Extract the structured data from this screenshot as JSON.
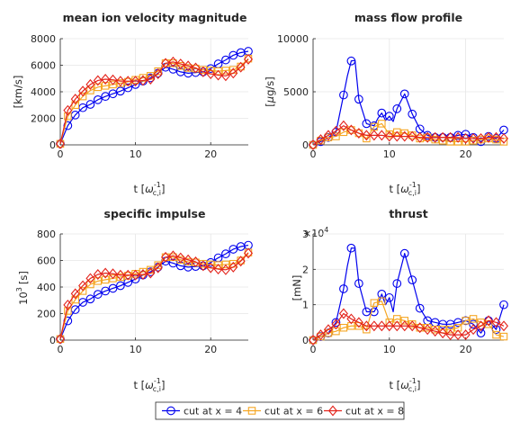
{
  "chart_data": [
    {
      "type": "line",
      "title": "mean ion velocity magnitude",
      "ylabel": "[km/s]",
      "xlabel_main": "t [",
      "xlabel_sym": "ω",
      "xlabel_sup": "-1",
      "xlabel_sub": "c,i",
      "xlabel_close": "]",
      "xlim": [
        0,
        25
      ],
      "ylim": [
        0,
        8000
      ],
      "xticks": [
        0,
        10,
        20
      ],
      "yticks": [
        0,
        2000,
        4000,
        6000,
        8000
      ],
      "series": [
        {
          "name": "cut at x = 4",
          "x": [
            0,
            1,
            2,
            3,
            4,
            5,
            6,
            7,
            8,
            9,
            10,
            11,
            12,
            13,
            14,
            15,
            16,
            17,
            18,
            19,
            20,
            21,
            22,
            23,
            24,
            25
          ],
          "y": [
            80,
            1450,
            2250,
            2800,
            3050,
            3400,
            3650,
            3850,
            4050,
            4300,
            4550,
            4800,
            5050,
            5400,
            5850,
            5700,
            5500,
            5400,
            5450,
            5500,
            5750,
            6100,
            6400,
            6750,
            6950,
            7050
          ]
        },
        {
          "name": "cut at x = 6",
          "x": [
            0,
            1,
            2,
            3,
            4,
            5,
            6,
            7,
            8,
            9,
            10,
            11,
            12,
            13,
            14,
            15,
            16,
            17,
            18,
            19,
            20,
            21,
            22,
            23,
            24,
            25
          ],
          "y": [
            80,
            2150,
            3000,
            3650,
            4100,
            4350,
            4450,
            4550,
            4650,
            4750,
            4900,
            5050,
            5200,
            5550,
            6150,
            6150,
            5950,
            5800,
            5750,
            5650,
            5600,
            5550,
            5600,
            5650,
            5900,
            6500
          ]
        },
        {
          "name": "cut at x = 8",
          "x": [
            0,
            1,
            2,
            3,
            4,
            5,
            6,
            7,
            8,
            9,
            10,
            11,
            12,
            13,
            14,
            15,
            16,
            17,
            18,
            19,
            20,
            21,
            22,
            23,
            24,
            25
          ],
          "y": [
            80,
            2600,
            3450,
            4050,
            4550,
            4850,
            4950,
            4900,
            4800,
            4800,
            4800,
            4850,
            4950,
            5350,
            6150,
            6250,
            6100,
            5950,
            5800,
            5500,
            5350,
            5250,
            5200,
            5400,
            5850,
            6450
          ]
        }
      ]
    },
    {
      "type": "line",
      "title": "mass flow profile",
      "ylabel_main": "[",
      "ylabel_sym": "μ",
      "ylabel_rest": "g/s]",
      "xlabel_main": "t [",
      "xlabel_sym": "ω",
      "xlabel_sup": "-1",
      "xlabel_sub": "c,i",
      "xlabel_close": "]",
      "xlim": [
        0,
        25
      ],
      "ylim": [
        0,
        10000
      ],
      "xticks": [
        0,
        10,
        20
      ],
      "yticks": [
        0,
        5000,
        10000
      ],
      "series": [
        {
          "name": "cut at x = 4",
          "x": [
            0,
            1,
            2,
            3,
            4,
            4.5,
            5,
            5.5,
            6,
            7,
            8,
            8.5,
            9,
            9.5,
            10,
            10.5,
            11,
            12,
            13,
            14,
            15,
            16,
            17,
            18,
            19,
            20,
            21,
            22,
            23,
            24,
            25
          ],
          "y": [
            0,
            300,
            700,
            1200,
            4700,
            6500,
            7900,
            7950,
            4300,
            2000,
            1800,
            2500,
            3000,
            2300,
            2700,
            2200,
            3400,
            4800,
            2900,
            1500,
            900,
            700,
            700,
            700,
            900,
            1000,
            700,
            300,
            800,
            600,
            1400
          ]
        },
        {
          "name": "cut at x = 6",
          "x": [
            0,
            1,
            2,
            3,
            4,
            5,
            6,
            7,
            8,
            9,
            10,
            11,
            12,
            13,
            14,
            15,
            16,
            17,
            18,
            19,
            20,
            21,
            22,
            23,
            24,
            25
          ],
          "y": [
            0,
            400,
            700,
            800,
            1200,
            1400,
            1100,
            600,
            1700,
            2000,
            1000,
            1200,
            1100,
            900,
            600,
            700,
            500,
            400,
            300,
            300,
            300,
            400,
            500,
            600,
            500,
            300
          ]
        },
        {
          "name": "cut at x = 8",
          "x": [
            0,
            1,
            2,
            3,
            4,
            5,
            6,
            7,
            8,
            9,
            10,
            11,
            12,
            13,
            14,
            15,
            16,
            17,
            18,
            19,
            20,
            21,
            22,
            23,
            24,
            25
          ],
          "y": [
            0,
            500,
            900,
            1300,
            1800,
            1400,
            1100,
            900,
            900,
            900,
            800,
            800,
            800,
            800,
            700,
            700,
            700,
            700,
            700,
            700,
            600,
            600,
            600,
            700,
            700,
            600
          ]
        }
      ]
    },
    {
      "type": "line",
      "title": "specific impulse",
      "ylabel": "[s]",
      "ylabel_pre": "10",
      "ylabel_sup": "3",
      "xlabel_main": "t [",
      "xlabel_sym": "ω",
      "xlabel_sup": "-1",
      "xlabel_sub": "c,i",
      "xlabel_close": "]",
      "xlim": [
        0,
        25
      ],
      "ylim": [
        0,
        800
      ],
      "xticks": [
        0,
        10,
        20
      ],
      "yticks": [
        0,
        200,
        400,
        600,
        800
      ],
      "series": [
        {
          "name": "cut at x = 4",
          "x": [
            0,
            1,
            2,
            3,
            4,
            5,
            6,
            7,
            8,
            9,
            10,
            11,
            12,
            13,
            14,
            15,
            16,
            17,
            18,
            19,
            20,
            21,
            22,
            23,
            24,
            25
          ],
          "y": [
            8,
            145,
            230,
            285,
            310,
            345,
            370,
            390,
            410,
            435,
            460,
            490,
            515,
            550,
            595,
            580,
            560,
            550,
            555,
            560,
            585,
            620,
            650,
            685,
            705,
            715
          ]
        },
        {
          "name": "cut at x = 6",
          "x": [
            0,
            1,
            2,
            3,
            4,
            5,
            6,
            7,
            8,
            9,
            10,
            11,
            12,
            13,
            14,
            15,
            16,
            17,
            18,
            19,
            20,
            21,
            22,
            23,
            24,
            25
          ],
          "y": [
            8,
            220,
            305,
            370,
            420,
            445,
            455,
            465,
            475,
            485,
            500,
            515,
            530,
            565,
            625,
            625,
            605,
            590,
            585,
            575,
            570,
            565,
            570,
            575,
            600,
            660
          ]
        },
        {
          "name": "cut at x = 8",
          "x": [
            0,
            1,
            2,
            3,
            4,
            5,
            6,
            7,
            8,
            9,
            10,
            11,
            12,
            13,
            14,
            15,
            16,
            17,
            18,
            19,
            20,
            21,
            22,
            23,
            24,
            25
          ],
          "y": [
            8,
            265,
            350,
            410,
            465,
            495,
            505,
            500,
            490,
            490,
            490,
            495,
            505,
            545,
            625,
            635,
            620,
            605,
            590,
            560,
            545,
            535,
            530,
            550,
            595,
            655
          ]
        }
      ]
    },
    {
      "type": "line",
      "title": "thrust",
      "ylabel": "[mN]",
      "exponent_base": "×10",
      "exponent_sup": "4",
      "xlabel_main": "t [",
      "xlabel_sym": "ω",
      "xlabel_sup": "-1",
      "xlabel_sub": "c,i",
      "xlabel_close": "]",
      "xlim": [
        0,
        25
      ],
      "ylim": [
        0,
        3
      ],
      "xticks": [
        0,
        10,
        20
      ],
      "yticks": [
        0,
        1,
        2,
        3
      ],
      "series": [
        {
          "name": "cut at x = 4",
          "x": [
            0,
            1,
            2,
            3,
            4,
            4.5,
            5,
            5.5,
            6,
            7,
            8,
            8.5,
            9,
            9.5,
            10,
            10.5,
            11,
            12,
            13,
            14,
            15,
            16,
            17,
            18,
            19,
            20,
            21,
            22,
            23,
            24,
            25
          ],
          "y": [
            0,
            0.1,
            0.2,
            0.5,
            1.45,
            2.1,
            2.6,
            2.6,
            1.6,
            0.8,
            0.8,
            1.0,
            1.3,
            1.0,
            1.2,
            0.8,
            1.6,
            2.45,
            1.7,
            0.9,
            0.55,
            0.5,
            0.45,
            0.45,
            0.5,
            0.55,
            0.45,
            0.2,
            0.55,
            0.3,
            1.0
          ]
        },
        {
          "name": "cut at x = 6",
          "x": [
            0,
            1,
            2,
            3,
            4,
            5,
            6,
            7,
            8,
            9,
            10,
            11,
            12,
            13,
            14,
            15,
            16,
            17,
            18,
            19,
            20,
            21,
            22,
            23,
            24,
            25
          ],
          "y": [
            0,
            0.1,
            0.2,
            0.25,
            0.35,
            0.4,
            0.4,
            0.3,
            1.05,
            1.1,
            0.5,
            0.6,
            0.55,
            0.45,
            0.35,
            0.35,
            0.3,
            0.3,
            0.3,
            0.35,
            0.55,
            0.6,
            0.5,
            0.45,
            0.15,
            0.1
          ]
        },
        {
          "name": "cut at x = 8",
          "x": [
            0,
            1,
            2,
            3,
            4,
            5,
            6,
            7,
            8,
            9,
            10,
            11,
            12,
            13,
            14,
            15,
            16,
            17,
            18,
            19,
            20,
            21,
            22,
            23,
            24,
            25
          ],
          "y": [
            0,
            0.15,
            0.3,
            0.45,
            0.75,
            0.6,
            0.5,
            0.4,
            0.4,
            0.4,
            0.4,
            0.4,
            0.4,
            0.4,
            0.35,
            0.3,
            0.25,
            0.2,
            0.15,
            0.15,
            0.15,
            0.3,
            0.4,
            0.55,
            0.5,
            0.4
          ]
        }
      ]
    }
  ],
  "series_style": [
    {
      "color": "#0000ee",
      "marker": "circle"
    },
    {
      "color": "#f5a623",
      "marker": "square"
    },
    {
      "color": "#e3231b",
      "marker": "diamond"
    }
  ],
  "legend": {
    "entries": [
      "cut at x = 4",
      "cut at x = 6",
      "cut at x = 8"
    ],
    "placement": "bottom-center"
  }
}
